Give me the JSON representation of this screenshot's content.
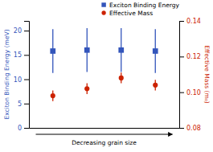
{
  "chart_data": {
    "type": "scatter",
    "categories": [
      null,
      null,
      null,
      null
    ],
    "xlabel": "Decreasing grain size",
    "ylabel": "Exciton Binding Energy (meV)",
    "y2label": "Effective Mass (m₀)",
    "ylim": [
      0,
      22
    ],
    "yticks": [
      0,
      5,
      10,
      15,
      20
    ],
    "y2lim": [
      0.08,
      0.14
    ],
    "y2ticks": [
      0.08,
      {
        "value": 0.1,
        "label": "0.10"
      },
      0.12,
      0.14
    ],
    "grid": false,
    "legend": "upper right",
    "tick_labels": "y",
    "series": [
      {
        "name": "Exciton Binding Energy",
        "color": "#3355BB",
        "marker": "square",
        "values": [
          15.8,
          16.0,
          16.0,
          15.8
        ],
        "errors": [
          4.5,
          4.5,
          4.5,
          4.5
        ]
      },
      {
        "name": "Effective Mass",
        "color": "#CC2200",
        "marker": "circle",
        "axis": "y2",
        "values": [
          0.098,
          0.102,
          0.108,
          0.104
        ],
        "errors": [
          0.003,
          0.003,
          0.003,
          0.003
        ]
      }
    ]
  }
}
